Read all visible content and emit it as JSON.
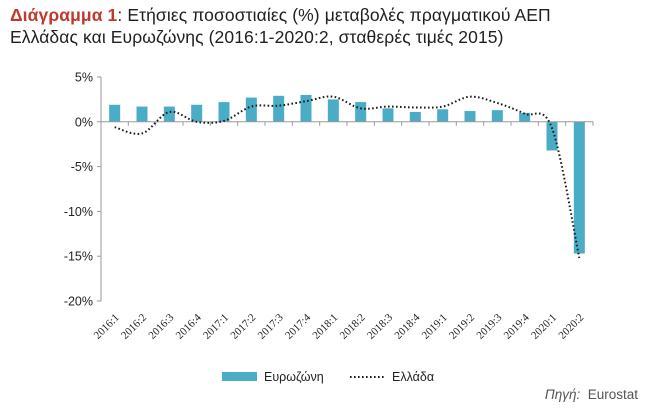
{
  "header": {
    "title_prefix": "Διάγραμμα 1",
    "title_rest": ": Ετήσιες ποσοστιαίες (%) μεταβολές πραγματικού ΑΕΠ",
    "title_line2": "Ελλάδας και Ευρωζώνης (2016:1-2020:2, σταθερές τιμές 2015)"
  },
  "source": {
    "label": "Πηγή:",
    "value": "Eurostat"
  },
  "chart_data": {
    "type": "bar",
    "categories": [
      "2016:1",
      "2016:2",
      "2016:3",
      "2016:4",
      "2017:1",
      "2017:2",
      "2017:3",
      "2017:4",
      "2018:1",
      "2018:2",
      "2018:3",
      "2018:4",
      "2019:1",
      "2019:2",
      "2019:3",
      "2019:4",
      "2020:1",
      "2020:2"
    ],
    "series": [
      {
        "name": "Ευρωζώνη",
        "type": "bar",
        "color": "#4bacc6",
        "values": [
          1.9,
          1.7,
          1.7,
          1.9,
          2.2,
          2.7,
          2.9,
          3.0,
          2.5,
          2.2,
          1.5,
          1.1,
          1.4,
          1.2,
          1.3,
          1.0,
          -3.2,
          -14.7
        ]
      },
      {
        "name": "Ελλάδα",
        "type": "line",
        "style": "dotted",
        "color": "#1a1a1a",
        "values": [
          -0.6,
          -1.3,
          1.1,
          0.0,
          0.1,
          1.7,
          1.8,
          2.3,
          2.8,
          1.5,
          1.7,
          1.6,
          1.7,
          2.8,
          2.1,
          0.9,
          -0.7,
          -15.2
        ]
      }
    ],
    "ylim": [
      -20,
      5
    ],
    "yticks": [
      "5%",
      "0%",
      "-5%",
      "-10%",
      "-15%",
      "-20%"
    ],
    "ytick_values": [
      5,
      0,
      -5,
      -10,
      -15,
      -20
    ],
    "grid": false,
    "legend": "bottom"
  }
}
